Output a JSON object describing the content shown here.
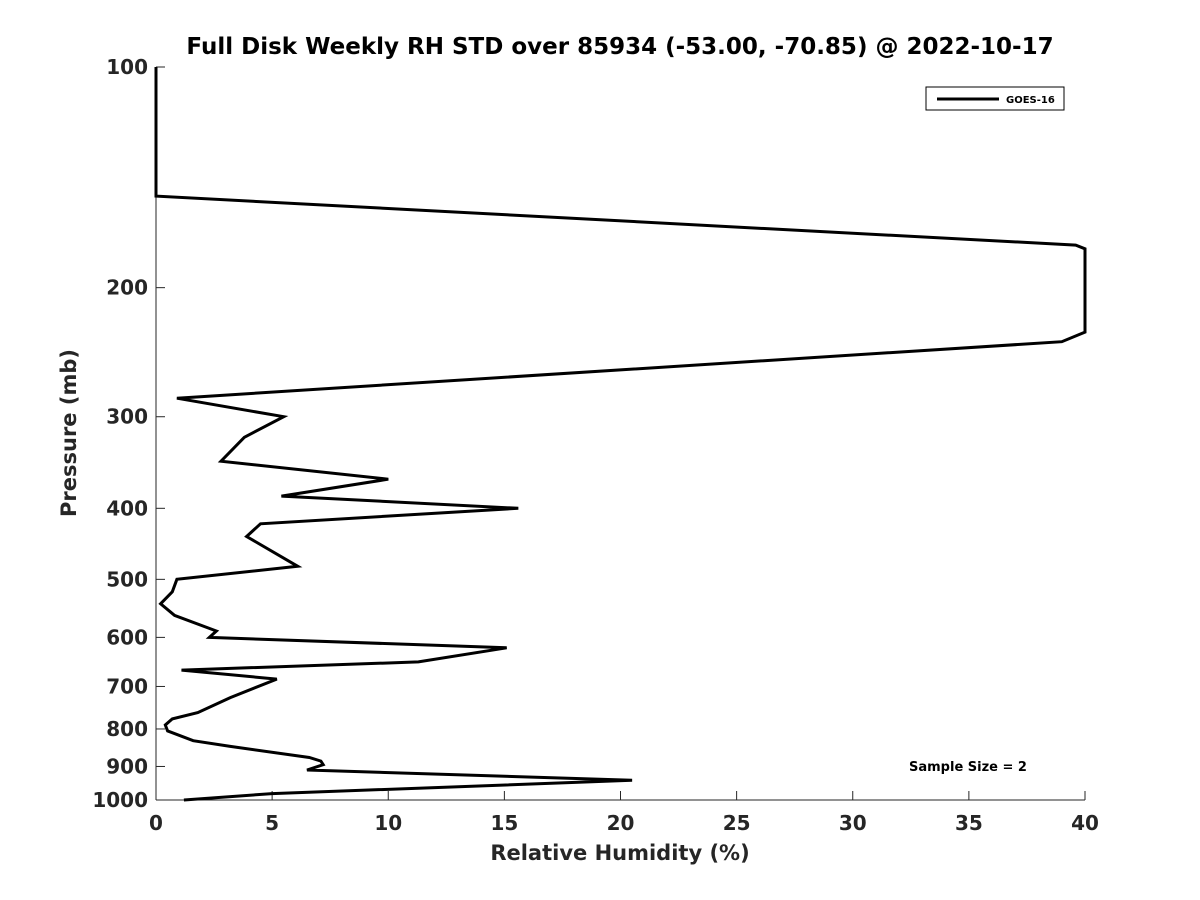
{
  "chart_data": {
    "type": "line",
    "title": "Full Disk Weekly RH STD over 85934 (-53.00, -70.85) @ 2022-10-17",
    "xlabel": "Relative Humidity (%)",
    "ylabel": "Pressure (mb)",
    "xlim": [
      0,
      40
    ],
    "ylim": [
      100,
      1000
    ],
    "yscale": "log",
    "y_reversed": true,
    "grid": false,
    "legend_position": "top-right",
    "xticks": [
      0,
      5,
      10,
      15,
      20,
      25,
      30,
      35,
      40
    ],
    "yticks": [
      100,
      200,
      300,
      400,
      500,
      600,
      700,
      800,
      900,
      1000
    ],
    "annotation": "Sample Size = 2",
    "series": [
      {
        "name": "GOES-16",
        "color": "#000000",
        "x": [
          0,
          0,
          39.6,
          40,
          40,
          39.0,
          0.9,
          5.5,
          3.8,
          2.8,
          10.0,
          5.4,
          15.6,
          4.5,
          3.9,
          6.1,
          0.9,
          0.7,
          0.2,
          0.8,
          2.6,
          2.3,
          15.1,
          11.3,
          1.1,
          5.2,
          3.2,
          1.8,
          0.7,
          0.4,
          0.5,
          1.6,
          3.2,
          6.6,
          7.1,
          7.2,
          6.5,
          20.5,
          5.0,
          1.2
        ],
        "y": [
          100,
          150,
          175,
          177,
          230,
          237,
          283,
          300,
          320,
          345,
          365,
          385,
          400,
          420,
          437,
          480,
          500,
          520,
          540,
          560,
          588,
          600,
          620,
          648,
          665,
          684,
          725,
          760,
          775,
          790,
          805,
          830,
          845,
          875,
          885,
          895,
          910,
          940,
          980,
          1000
        ]
      }
    ]
  }
}
